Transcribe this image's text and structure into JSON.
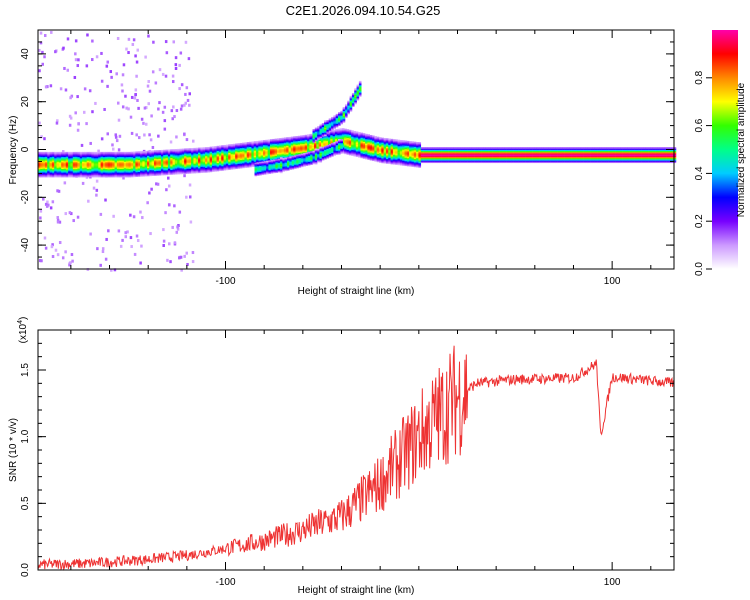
{
  "figure_title": "C2E1.2026.094.10.54.G25",
  "chart_data": [
    {
      "type": "heatmap",
      "title": "C2E1.2026.094.10.54.G25",
      "xlabel": "Height of straight line (km)",
      "ylabel": "Frequency (Hz)",
      "xlim": [
        -197,
        132
      ],
      "ylim": [
        -50,
        50
      ],
      "x_ticks": [
        -100,
        100
      ],
      "x_tick_labels": [
        "-100",
        "100"
      ],
      "y_ticks": [
        -40,
        -20,
        0,
        20,
        40
      ],
      "y_tick_labels": [
        "-40",
        "-20",
        "0",
        "20",
        "40"
      ],
      "colorbar": {
        "label": "Normalized spectral amplitude",
        "range": [
          0,
          1
        ],
        "ticks": [
          0.0,
          0.2,
          0.4,
          0.6,
          0.8
        ],
        "tick_labels": [
          "0.0",
          "0.2",
          "0.4",
          "0.6",
          "0.8"
        ],
        "colors": [
          "#ffffff",
          "#cc99ff",
          "#7700ff",
          "#0000ff",
          "#00ccff",
          "#00ff88",
          "#33ff00",
          "#ffff00",
          "#ff8800",
          "#ff0000",
          "#ff00aa"
        ]
      },
      "ridges": [
        {
          "name": "main carrier",
          "x": [
            -197,
            -150,
            -110,
            -80,
            -60,
            -40,
            -20,
            0,
            20,
            60,
            100,
            132
          ],
          "y": [
            -6,
            -6,
            -4,
            -1,
            1,
            4,
            0,
            -2,
            -2,
            -2,
            -2,
            -2
          ]
        },
        {
          "name": "branch",
          "x": [
            -85,
            -70,
            -55,
            -40
          ],
          "y": [
            -8,
            -6,
            -3,
            2
          ]
        },
        {
          "name": "upper arc",
          "x": [
            -55,
            -40,
            -30
          ],
          "y": [
            6,
            14,
            27
          ]
        }
      ]
    },
    {
      "type": "line",
      "xlabel": "Height of straight line (km)",
      "ylabel": "SNR (10 * v/v)",
      "y_multiplier": "(x10",
      "y_multiplier_exp": "4",
      "xlim": [
        -197,
        132
      ],
      "ylim": [
        0,
        1.8
      ],
      "x_ticks": [
        -100,
        100
      ],
      "x_tick_labels": [
        "-100",
        "100"
      ],
      "y_ticks": [
        0.0,
        0.5,
        1.0,
        1.5
      ],
      "y_tick_labels": [
        "0.0",
        "0.5",
        "1.0",
        "1.5"
      ],
      "line_color": "#ee3333",
      "series": [
        {
          "name": "SNR",
          "x": [
            -197,
            -170,
            -140,
            -120,
            -100,
            -80,
            -60,
            -40,
            -30,
            -20,
            -10,
            0,
            10,
            20,
            30,
            50,
            80,
            92,
            94,
            100,
            132
          ],
          "y": [
            0.04,
            0.05,
            0.08,
            0.11,
            0.16,
            0.22,
            0.3,
            0.4,
            0.52,
            0.65,
            0.82,
            1.0,
            1.15,
            1.3,
            1.4,
            1.43,
            1.44,
            1.55,
            1.0,
            1.45,
            1.4
          ]
        }
      ]
    }
  ]
}
